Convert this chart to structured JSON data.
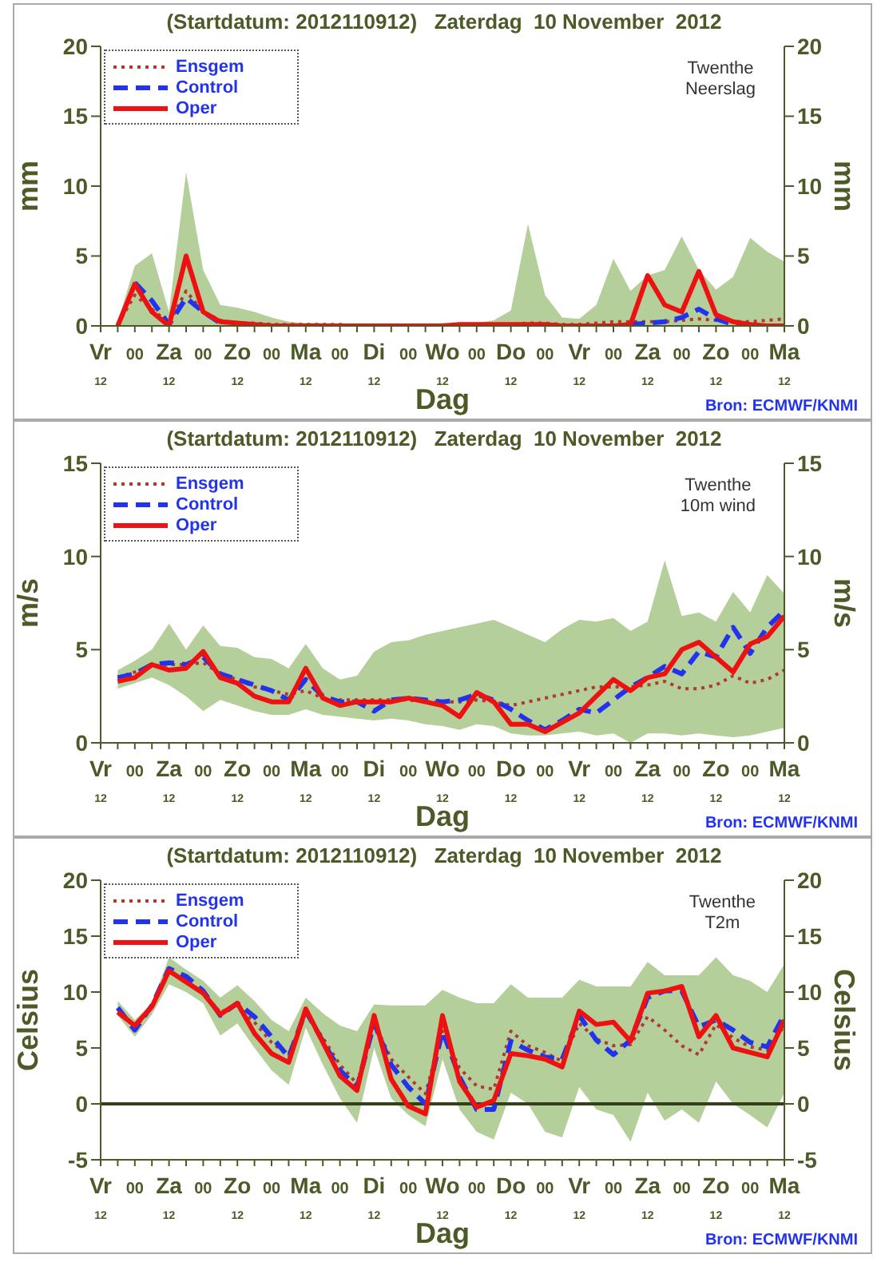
{
  "chart_data": [
    {
      "type": "line",
      "title": "(Startdatum: 2012110912)   Zaterdag  10 November  2012",
      "subtitle": "Twenthe\nNeerslag",
      "xlabel": "Dag",
      "ylabel": "mm",
      "y2label": "mm",
      "annotations": [
        "Bron: ECMWF/KNMI"
      ],
      "legend": "top left",
      "categories": [
        "Vr\n12",
        null,
        "00",
        null,
        "Za\n12",
        null,
        "00",
        null,
        "Zo\n12",
        null,
        "00",
        null,
        "Ma\n12",
        null,
        "00",
        null,
        "Di\n12",
        null,
        "00",
        null,
        "Wo\n12",
        null,
        "00",
        null,
        "Do\n12",
        null,
        "00",
        null,
        "Vr\n12",
        null,
        "00",
        null,
        "Za\n12",
        null,
        "00",
        null,
        "Zo\n12",
        null,
        "00",
        null,
        "Ma\n12"
      ],
      "ylim": [
        0,
        20
      ],
      "yticks": [
        0,
        5,
        10,
        15,
        20
      ],
      "y2lim": [
        0,
        20
      ],
      "y2ticks": [
        0,
        5,
        10,
        15,
        20
      ],
      "series": [
        {
          "name": "Ensgem",
          "color": "#b03a2e",
          "line_style": "dotted",
          "values": [
            null,
            0.1,
            2.2,
            1.2,
            0.2,
            2.5,
            1.0,
            0.4,
            0.2,
            0.2,
            0.1,
            0.1,
            0.1,
            0.1,
            0.1,
            0.0,
            0.0,
            0.0,
            0.0,
            0.0,
            0.0,
            0.0,
            0.0,
            0.1,
            0.1,
            0.2,
            0.2,
            0.1,
            0.1,
            0.2,
            0.3,
            0.3,
            0.3,
            0.3,
            0.4,
            0.5,
            0.4,
            0.3,
            0.3,
            0.4,
            0.5
          ],
          "lower": [
            null,
            0,
            0,
            0,
            0,
            0,
            0,
            0,
            0,
            0,
            0,
            0,
            0,
            0,
            0,
            0,
            0,
            0,
            0,
            0,
            0,
            0,
            0,
            0,
            0,
            0,
            0,
            0,
            0,
            0,
            0,
            0,
            0,
            0,
            0,
            0,
            0,
            0,
            0,
            0,
            0
          ],
          "upper": [
            null,
            0.3,
            4.3,
            5.2,
            1.0,
            11.0,
            4.0,
            1.5,
            1.3,
            1.0,
            0.6,
            0.3,
            0.2,
            0.2,
            0.1,
            0.1,
            0.1,
            0.1,
            0.1,
            0.1,
            0.2,
            0.2,
            0.2,
            0.4,
            1.1,
            7.3,
            2.2,
            0.6,
            0.5,
            1.5,
            4.8,
            2.5,
            3.6,
            4.0,
            6.4,
            4.0,
            2.6,
            3.5,
            6.3,
            5.3,
            4.6
          ]
        },
        {
          "name": "Control",
          "color": "#2233ee",
          "line_style": "dashed",
          "values": [
            null,
            null,
            3.1,
            1.8,
            0.1,
            2.0,
            1.0,
            0.2,
            null,
            null,
            null,
            null,
            null,
            null,
            null,
            null,
            null,
            null,
            null,
            null,
            null,
            null,
            null,
            null,
            null,
            null,
            null,
            null,
            null,
            null,
            null,
            0.1,
            0.2,
            0.3,
            0.6,
            1.2,
            0.5,
            0.1,
            0.0,
            null,
            null
          ]
        },
        {
          "name": "Oper",
          "color": "#ee1111",
          "line_style": "solid",
          "values": [
            null,
            0.0,
            3.0,
            1.0,
            0.0,
            5.0,
            1.0,
            0.3,
            0.2,
            0.1,
            0.0,
            0.0,
            0.0,
            0.0,
            0.0,
            0.0,
            0.0,
            0.0,
            0.0,
            0.0,
            0.0,
            0.1,
            0.1,
            0.1,
            0.1,
            0.1,
            0.1,
            0.0,
            0.0,
            0.0,
            0.0,
            0.1,
            3.6,
            1.5,
            1.0,
            3.9,
            0.8,
            0.3,
            0.1,
            0.0,
            0.0
          ]
        }
      ]
    },
    {
      "type": "line",
      "title": "(Startdatum: 2012110912)   Zaterdag  10 November  2012",
      "subtitle": "Twenthe\n10m wind",
      "xlabel": "Dag",
      "ylabel": "m/s",
      "y2label": "m/s",
      "annotations": [
        "Bron: ECMWF/KNMI"
      ],
      "legend": "top left",
      "categories": [
        "Vr\n12",
        null,
        "00",
        null,
        "Za\n12",
        null,
        "00",
        null,
        "Zo\n12",
        null,
        "00",
        null,
        "Ma\n12",
        null,
        "00",
        null,
        "Di\n12",
        null,
        "00",
        null,
        "Wo\n12",
        null,
        "00",
        null,
        "Do\n12",
        null,
        "00",
        null,
        "Vr\n12",
        null,
        "00",
        null,
        "Za\n12",
        null,
        "00",
        null,
        "Zo\n12",
        null,
        "00",
        null,
        "Ma\n12"
      ],
      "ylim": [
        0,
        15
      ],
      "yticks": [
        0,
        5,
        10,
        15
      ],
      "y2lim": [
        0,
        15
      ],
      "y2ticks": [
        0,
        5,
        10,
        15
      ],
      "series": [
        {
          "name": "Ensgem",
          "color": "#b03a2e",
          "line_style": "dotted",
          "values": [
            null,
            3.5,
            3.8,
            4.1,
            4.2,
            4.2,
            4.3,
            3.7,
            3.4,
            3.0,
            2.8,
            2.6,
            2.8,
            2.4,
            2.3,
            2.3,
            2.3,
            2.3,
            2.3,
            2.2,
            2.2,
            2.2,
            2.3,
            2.2,
            2.0,
            2.2,
            2.4,
            2.6,
            2.8,
            3.0,
            3.0,
            3.0,
            3.1,
            3.3,
            2.9,
            2.9,
            3.1,
            3.6,
            3.2,
            3.4,
            3.9
          ],
          "lower": [
            null,
            2.9,
            3.2,
            3.5,
            3.1,
            2.5,
            1.7,
            2.3,
            2.0,
            1.7,
            1.5,
            1.5,
            1.8,
            1.5,
            1.4,
            1.3,
            1.2,
            1.3,
            1.2,
            1.0,
            0.9,
            0.7,
            1.0,
            0.9,
            0.5,
            0.4,
            0.4,
            0.5,
            0.6,
            0.4,
            0.5,
            0.0,
            0.5,
            0.5,
            0.4,
            0.5,
            0.4,
            0.3,
            0.4,
            0.6,
            0.8
          ],
          "upper": [
            null,
            3.9,
            4.4,
            5.0,
            6.4,
            5.0,
            6.3,
            5.2,
            5.1,
            4.6,
            4.5,
            4.0,
            5.3,
            4.0,
            3.4,
            3.6,
            4.9,
            5.4,
            5.5,
            5.8,
            6.0,
            6.2,
            6.4,
            6.6,
            6.2,
            5.8,
            5.4,
            6.1,
            6.6,
            6.5,
            6.7,
            6.0,
            6.5,
            9.8,
            6.8,
            7.0,
            6.5,
            8.1,
            7.0,
            9.0,
            8.0
          ]
        },
        {
          "name": "Control",
          "color": "#2233ee",
          "line_style": "dashed",
          "values": [
            null,
            3.5,
            3.7,
            4.2,
            4.3,
            4.2,
            4.6,
            3.7,
            3.4,
            3.1,
            2.8,
            2.3,
            3.4,
            2.5,
            2.2,
            2.2,
            1.7,
            2.3,
            2.4,
            2.3,
            2.2,
            2.3,
            2.6,
            2.3,
            1.8,
            1.2,
            0.7,
            1.2,
            1.8,
            1.6,
            2.3,
            3.0,
            3.5,
            4.1,
            3.7,
            4.9,
            4.6,
            6.2,
            4.8,
            6.2,
            7.1
          ]
        },
        {
          "name": "Oper",
          "color": "#ee1111",
          "line_style": "solid",
          "values": [
            null,
            3.3,
            3.5,
            4.2,
            3.9,
            4.0,
            4.9,
            3.5,
            3.2,
            2.5,
            2.2,
            2.2,
            4.0,
            2.4,
            2.0,
            2.2,
            2.2,
            2.2,
            2.4,
            2.2,
            2.0,
            1.4,
            2.7,
            2.2,
            1.0,
            1.0,
            0.6,
            1.1,
            1.6,
            2.5,
            3.4,
            2.8,
            3.5,
            3.7,
            5.0,
            5.4,
            4.6,
            3.8,
            5.3,
            5.7,
            6.8
          ]
        }
      ]
    },
    {
      "type": "line",
      "title": "(Startdatum: 2012110912)   Zaterdag  10 November  2012",
      "subtitle": "Twenthe\nT2m",
      "xlabel": "Dag",
      "ylabel": "Celsius",
      "y2label": "Celsius",
      "annotations": [
        "Bron: ECMWF/KNMI"
      ],
      "legend": "top left",
      "categories": [
        "Vr\n12",
        null,
        "00",
        null,
        "Za\n12",
        null,
        "00",
        null,
        "Zo\n12",
        null,
        "00",
        null,
        "Ma\n12",
        null,
        "00",
        null,
        "Di\n12",
        null,
        "00",
        null,
        "Wo\n12",
        null,
        "00",
        null,
        "Do\n12",
        null,
        "00",
        null,
        "Vr\n12",
        null,
        "00",
        null,
        "Za\n12",
        null,
        "00",
        null,
        "Zo\n12",
        null,
        "00",
        null,
        "Ma\n12"
      ],
      "ylim": [
        -5,
        20
      ],
      "yticks": [
        -5,
        0,
        5,
        10,
        15,
        20
      ],
      "y2lim": [
        -5,
        20
      ],
      "y2ticks": [
        -5,
        0,
        5,
        10,
        15,
        20
      ],
      "ref_lines": [
        {
          "axis": "y",
          "value": 0,
          "color": "#33401a",
          "line_style": "solid"
        }
      ],
      "series": [
        {
          "name": "Ensgem",
          "color": "#b03a2e",
          "line_style": "dotted",
          "values": [
            null,
            8.5,
            6.8,
            8.6,
            11.8,
            11.0,
            9.9,
            8.2,
            8.8,
            7.3,
            5.5,
            4.3,
            8.2,
            5.9,
            3.5,
            1.8,
            7.3,
            4.0,
            2.4,
            0.9,
            6.5,
            3.2,
            1.6,
            1.3,
            6.5,
            5.2,
            4.6,
            3.8,
            7.2,
            5.8,
            5.2,
            5.3,
            7.8,
            6.6,
            5.2,
            4.4,
            7.1,
            5.9,
            5.1,
            4.8,
            7.0
          ],
          "lower": [
            null,
            7.9,
            6.0,
            8.0,
            10.7,
            10.0,
            9.0,
            6.1,
            7.2,
            5.0,
            3.0,
            1.7,
            6.8,
            3.5,
            0.5,
            -1.7,
            5.0,
            0.5,
            -1.0,
            -2.0,
            4.0,
            -0.5,
            -2.5,
            -3.2,
            1.0,
            0.0,
            -2.5,
            -3.0,
            1.5,
            -0.5,
            -1.0,
            -3.4,
            1.0,
            -1.5,
            -0.5,
            -1.7,
            2.0,
            0.0,
            -1.0,
            -2.1,
            1.0
          ],
          "upper": [
            null,
            9.2,
            7.5,
            9.0,
            13.1,
            12.0,
            11.0,
            9.5,
            10.6,
            9.2,
            7.5,
            6.5,
            9.5,
            8.1,
            7.0,
            6.5,
            8.9,
            8.8,
            8.8,
            8.8,
            10.2,
            9.5,
            9.0,
            9.0,
            10.7,
            9.5,
            9.5,
            9.5,
            11.1,
            10.5,
            10.5,
            10.5,
            12.7,
            11.5,
            11.5,
            11.5,
            13.1,
            11.5,
            11.0,
            10.0,
            12.5
          ]
        },
        {
          "name": "Control",
          "color": "#2233ee",
          "line_style": "dashed",
          "values": [
            null,
            8.6,
            6.6,
            8.8,
            12.1,
            11.4,
            10.1,
            7.9,
            9.0,
            7.8,
            6.0,
            4.2,
            8.3,
            5.6,
            3.0,
            1.5,
            7.2,
            3.5,
            1.5,
            0.0,
            6.5,
            2.4,
            -0.5,
            -0.5,
            5.6,
            4.8,
            4.2,
            4.0,
            7.9,
            5.7,
            4.4,
            5.7,
            9.5,
            10.1,
            10.1,
            6.9,
            7.5,
            6.6,
            5.5,
            5.1,
            8.0
          ]
        },
        {
          "name": "Oper",
          "color": "#ee1111",
          "line_style": "solid",
          "values": [
            null,
            8.2,
            7.0,
            8.7,
            11.9,
            10.9,
            9.9,
            8.0,
            9.0,
            6.3,
            4.5,
            3.7,
            8.5,
            5.5,
            2.5,
            1.2,
            7.9,
            2.2,
            -0.2,
            -0.9,
            7.9,
            2.0,
            -0.3,
            0.3,
            4.5,
            4.3,
            4.0,
            3.3,
            8.3,
            7.1,
            7.3,
            5.6,
            9.9,
            10.1,
            10.5,
            6.0,
            7.9,
            5.0,
            4.6,
            4.2,
            7.5
          ]
        }
      ]
    }
  ]
}
